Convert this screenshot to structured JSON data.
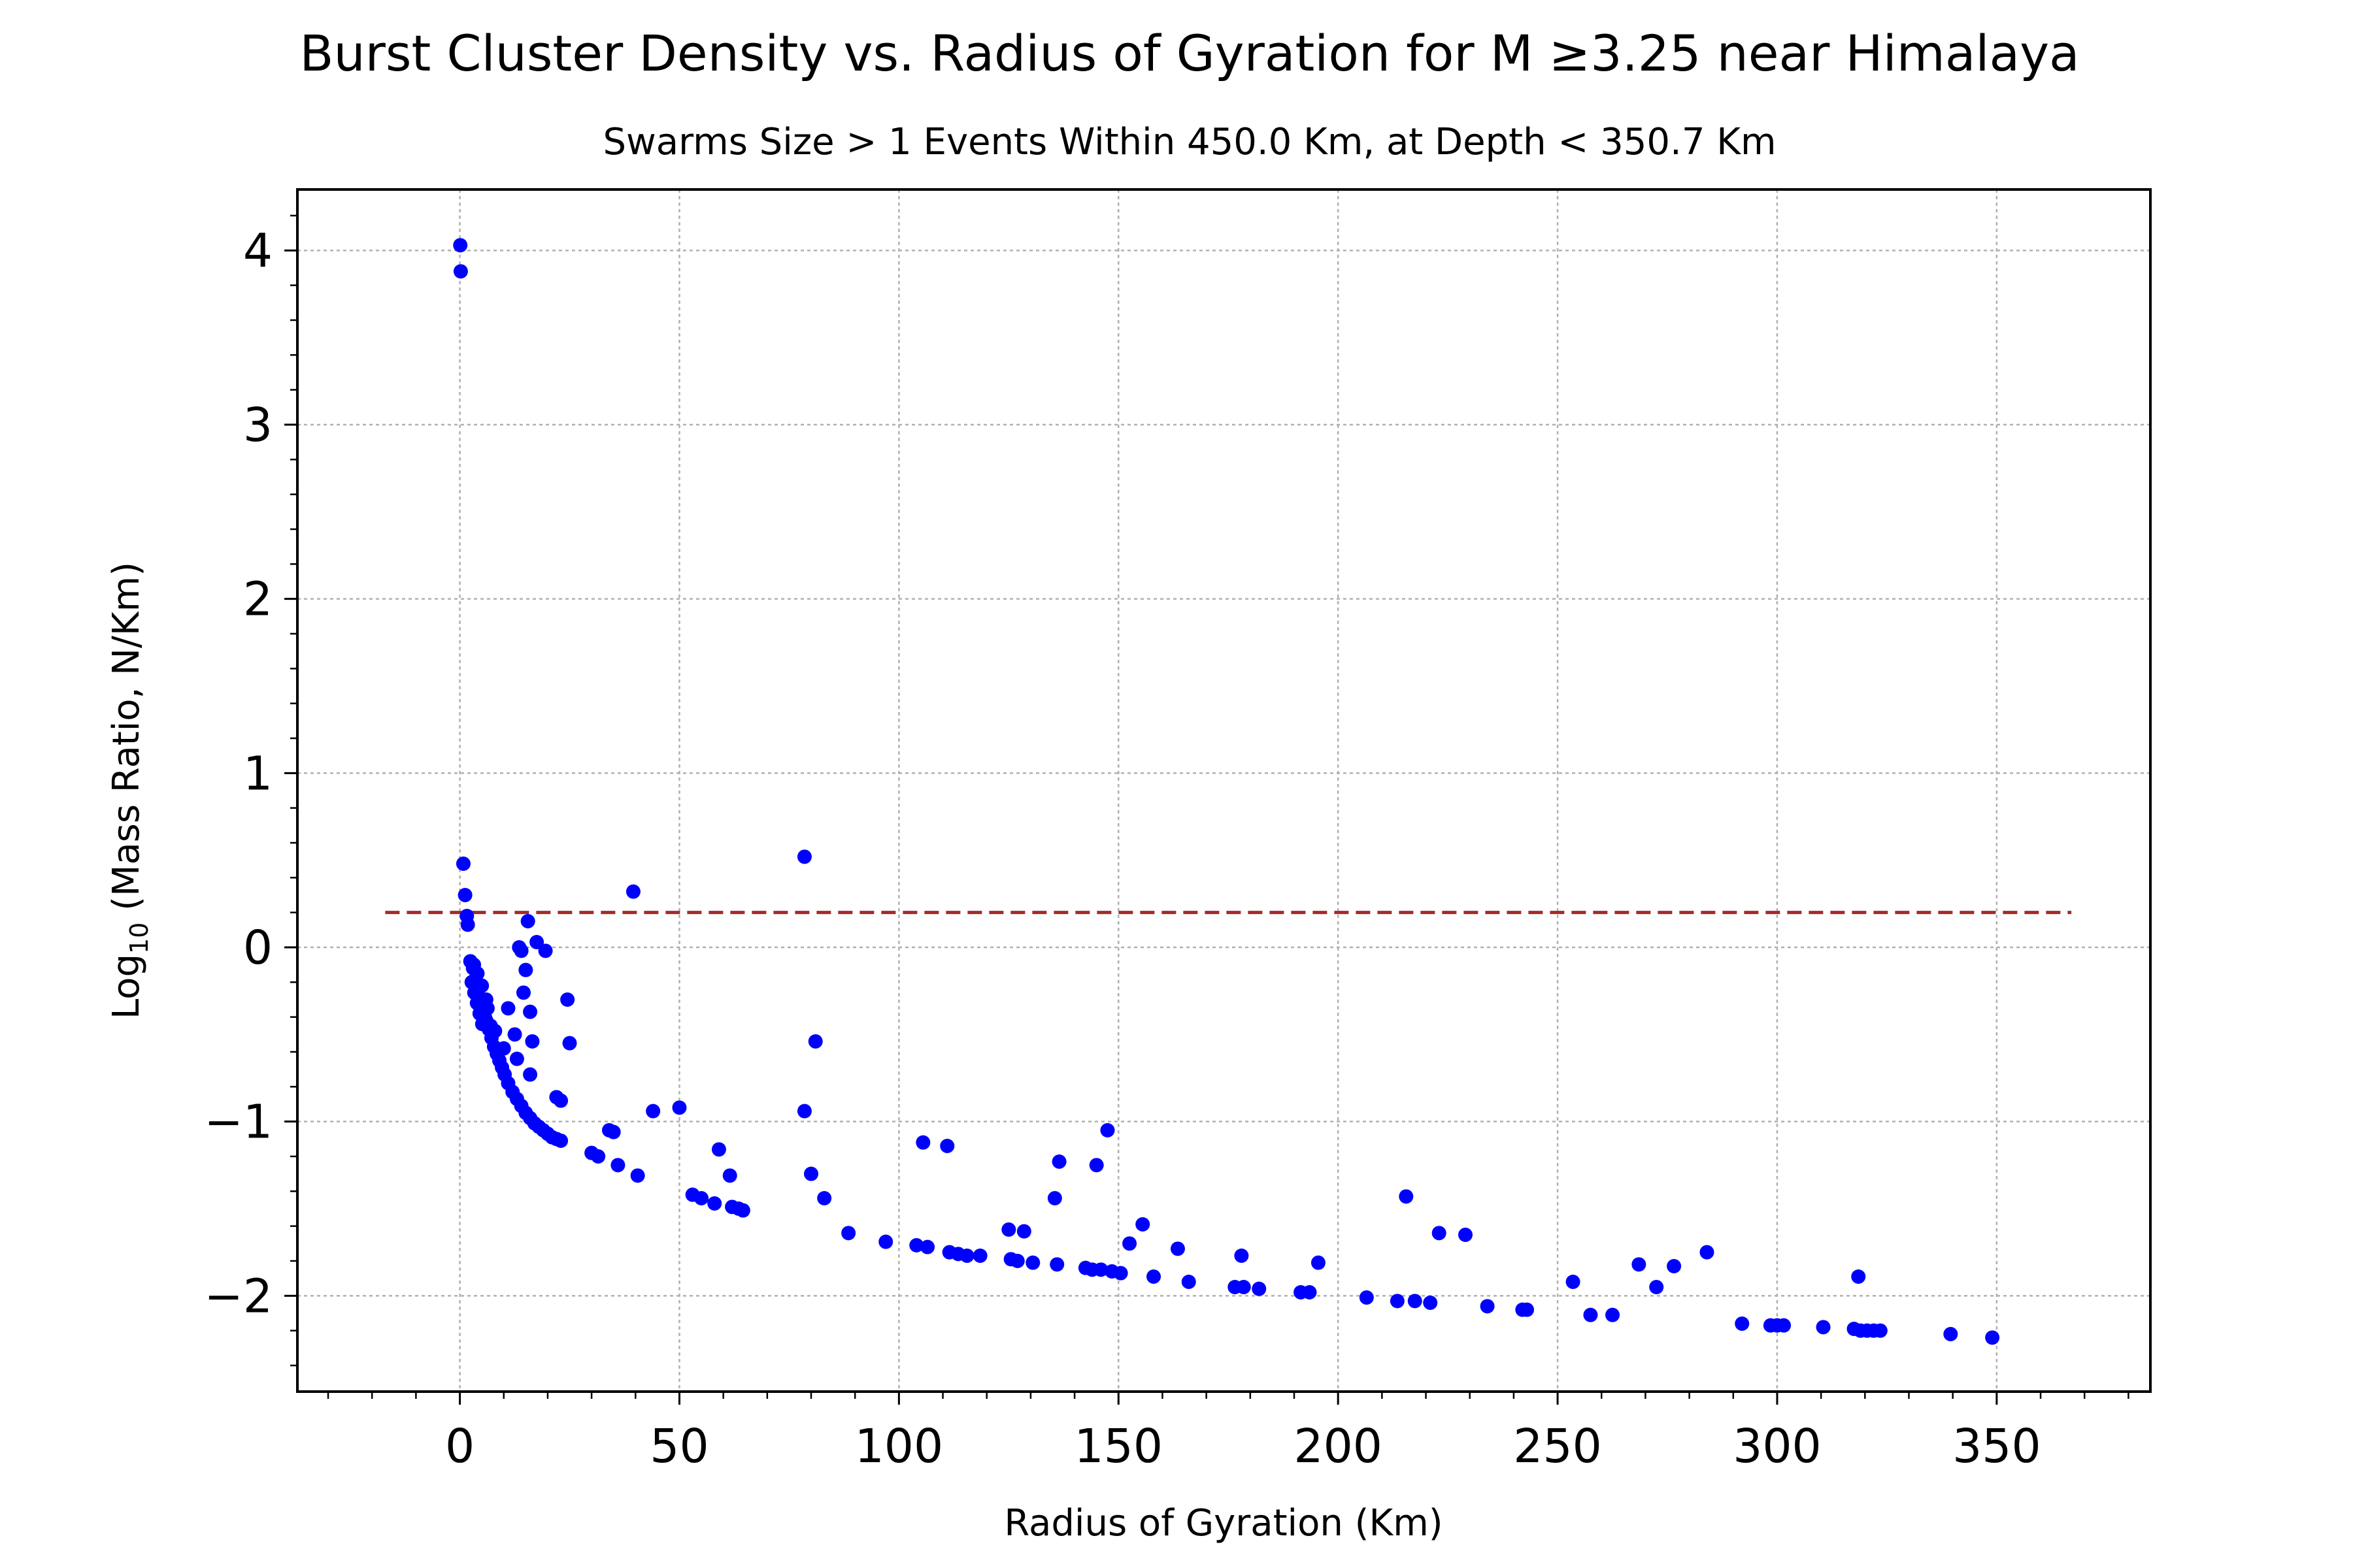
{
  "chart_data": {
    "type": "scatter",
    "title": "Burst Cluster Density vs. Radius of Gyration for M ≥3.25 near Himalaya",
    "subtitle": "Swarms Size > 1 Events Within 450.0 Km, at Depth < 350.7 Km",
    "xlabel": "Radius of Gyration (Km)",
    "ylabel_prefix": "Log",
    "ylabel_sub": "10",
    "ylabel_suffix": " (Mass Ratio, N/Km)",
    "xlim": [
      -37,
      385
    ],
    "ylim": [
      -2.55,
      4.35
    ],
    "x_ticks": [
      0,
      50,
      100,
      150,
      200,
      250,
      300,
      350
    ],
    "y_ticks": [
      -2,
      -1,
      0,
      1,
      2,
      3,
      4
    ],
    "x_tick_labels": [
      "0",
      "50",
      "100",
      "150",
      "200",
      "250",
      "300",
      "350"
    ],
    "y_tick_labels": [
      "−2",
      "−1",
      "0",
      "1",
      "2",
      "3",
      "4"
    ],
    "grid": true,
    "point_color": "#0000ff",
    "reference_line": {
      "x": [
        -17,
        367
      ],
      "y": 0.2,
      "color": "#a52a2a",
      "style": "dashed"
    },
    "points": [
      [
        0.1,
        4.03
      ],
      [
        0.2,
        3.88
      ],
      [
        0.8,
        0.48
      ],
      [
        1.2,
        0.3
      ],
      [
        1.6,
        0.18
      ],
      [
        1.8,
        0.13
      ],
      [
        2.4,
        -0.08
      ],
      [
        3.0,
        -0.12
      ],
      [
        3.6,
        -0.18
      ],
      [
        4.2,
        -0.24
      ],
      [
        4.8,
        -0.3
      ],
      [
        5.4,
        -0.36
      ],
      [
        6.0,
        -0.42
      ],
      [
        6.6,
        -0.47
      ],
      [
        7.2,
        -0.52
      ],
      [
        7.8,
        -0.57
      ],
      [
        8.4,
        -0.61
      ],
      [
        9.0,
        -0.65
      ],
      [
        9.6,
        -0.69
      ],
      [
        10.2,
        -0.73
      ],
      [
        11.0,
        -0.78
      ],
      [
        12.0,
        -0.83
      ],
      [
        13.0,
        -0.87
      ],
      [
        14.0,
        -0.91
      ],
      [
        15.0,
        -0.95
      ],
      [
        16.0,
        -0.98
      ],
      [
        17.0,
        -1.01
      ],
      [
        18.0,
        -1.03
      ],
      [
        19.0,
        -1.05
      ],
      [
        20.0,
        -1.07
      ],
      [
        21.0,
        -1.09
      ],
      [
        22.0,
        -1.1
      ],
      [
        23.0,
        -1.11
      ],
      [
        2.7,
        -0.2
      ],
      [
        3.3,
        -0.26
      ],
      [
        3.9,
        -0.32
      ],
      [
        4.5,
        -0.38
      ],
      [
        5.1,
        -0.44
      ],
      [
        5.7,
        -0.4
      ],
      [
        6.3,
        -0.35
      ],
      [
        7.0,
        -0.45
      ],
      [
        3.2,
        -0.1
      ],
      [
        4.0,
        -0.15
      ],
      [
        5.0,
        -0.22
      ],
      [
        6.0,
        -0.3
      ],
      [
        8.0,
        -0.48
      ],
      [
        10.0,
        -0.58
      ],
      [
        11.0,
        -0.35
      ],
      [
        12.5,
        -0.5
      ],
      [
        13.0,
        -0.64
      ],
      [
        13.5,
        0.0
      ],
      [
        14.0,
        -0.02
      ],
      [
        14.5,
        -0.26
      ],
      [
        15.0,
        -0.13
      ],
      [
        15.5,
        0.15
      ],
      [
        16.0,
        -0.37
      ],
      [
        16.5,
        -0.54
      ],
      [
        16.0,
        -0.73
      ],
      [
        17.5,
        0.03
      ],
      [
        19.5,
        -0.02
      ],
      [
        22.0,
        -0.86
      ],
      [
        23.0,
        -0.88
      ],
      [
        24.5,
        -0.3
      ],
      [
        25.0,
        -0.55
      ],
      [
        30.0,
        -1.18
      ],
      [
        31.5,
        -1.2
      ],
      [
        34.0,
        -1.05
      ],
      [
        35.0,
        -1.06
      ],
      [
        36.0,
        -1.25
      ],
      [
        39.5,
        0.32
      ],
      [
        40.5,
        -1.31
      ],
      [
        44.0,
        -0.94
      ],
      [
        50.0,
        -0.92
      ],
      [
        53.0,
        -1.42
      ],
      [
        55.0,
        -1.44
      ],
      [
        58.0,
        -1.47
      ],
      [
        59.0,
        -1.16
      ],
      [
        61.5,
        -1.31
      ],
      [
        62.0,
        -1.49
      ],
      [
        63.5,
        -1.5
      ],
      [
        64.5,
        -1.51
      ],
      [
        78.5,
        0.52
      ],
      [
        78.5,
        -0.94
      ],
      [
        80.0,
        -1.3
      ],
      [
        81.0,
        -0.54
      ],
      [
        83.0,
        -1.44
      ],
      [
        88.5,
        -1.64
      ],
      [
        97.0,
        -1.69
      ],
      [
        104.0,
        -1.71
      ],
      [
        105.5,
        -1.12
      ],
      [
        106.5,
        -1.72
      ],
      [
        111.0,
        -1.14
      ],
      [
        111.5,
        -1.75
      ],
      [
        113.5,
        -1.76
      ],
      [
        115.5,
        -1.77
      ],
      [
        118.5,
        -1.77
      ],
      [
        125.0,
        -1.62
      ],
      [
        125.5,
        -1.79
      ],
      [
        127.0,
        -1.8
      ],
      [
        128.5,
        -1.63
      ],
      [
        130.5,
        -1.81
      ],
      [
        135.5,
        -1.44
      ],
      [
        136.0,
        -1.82
      ],
      [
        136.5,
        -1.23
      ],
      [
        142.5,
        -1.84
      ],
      [
        144.0,
        -1.85
      ],
      [
        145.0,
        -1.25
      ],
      [
        146.0,
        -1.85
      ],
      [
        147.5,
        -1.05
      ],
      [
        148.5,
        -1.86
      ],
      [
        150.5,
        -1.87
      ],
      [
        152.5,
        -1.7
      ],
      [
        155.5,
        -1.59
      ],
      [
        158.0,
        -1.89
      ],
      [
        163.5,
        -1.73
      ],
      [
        166.0,
        -1.92
      ],
      [
        176.5,
        -1.95
      ],
      [
        178.0,
        -1.77
      ],
      [
        178.5,
        -1.95
      ],
      [
        182.0,
        -1.96
      ],
      [
        191.5,
        -1.98
      ],
      [
        193.5,
        -1.98
      ],
      [
        195.5,
        -1.81
      ],
      [
        206.5,
        -2.01
      ],
      [
        213.5,
        -2.03
      ],
      [
        215.5,
        -1.43
      ],
      [
        217.5,
        -2.03
      ],
      [
        221.0,
        -2.04
      ],
      [
        223.0,
        -1.64
      ],
      [
        229.0,
        -1.65
      ],
      [
        234.0,
        -2.06
      ],
      [
        242.0,
        -2.08
      ],
      [
        243.0,
        -2.08
      ],
      [
        253.5,
        -1.92
      ],
      [
        257.5,
        -2.11
      ],
      [
        262.5,
        -2.11
      ],
      [
        268.5,
        -1.82
      ],
      [
        272.5,
        -1.95
      ],
      [
        276.5,
        -1.83
      ],
      [
        284.0,
        -1.75
      ],
      [
        292.0,
        -2.16
      ],
      [
        298.5,
        -2.17
      ],
      [
        300.0,
        -2.17
      ],
      [
        301.5,
        -2.17
      ],
      [
        310.5,
        -2.18
      ],
      [
        317.5,
        -2.19
      ],
      [
        318.5,
        -1.89
      ],
      [
        319.0,
        -2.2
      ],
      [
        320.5,
        -2.2
      ],
      [
        322.0,
        -2.2
      ],
      [
        323.5,
        -2.2
      ],
      [
        339.5,
        -2.22
      ],
      [
        349.0,
        -2.24
      ]
    ]
  }
}
